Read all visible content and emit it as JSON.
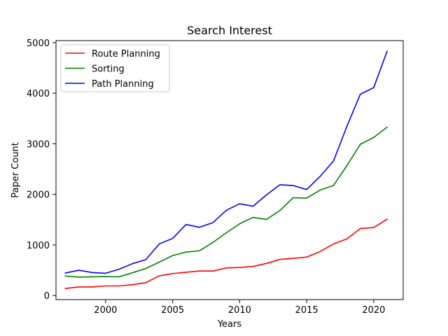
{
  "chart_data": {
    "type": "line",
    "title": "Search Interest",
    "xlabel": "Years",
    "ylabel": "Paper Count",
    "xlim": [
      1996.3,
      2022.2
    ],
    "ylim": [
      -80,
      5040
    ],
    "xticks": [
      2000,
      2005,
      2010,
      2015,
      2020
    ],
    "yticks": [
      0,
      1000,
      2000,
      3000,
      4000,
      5000
    ],
    "grid": false,
    "legend_position": "top-left",
    "x": [
      1997,
      1998,
      1999,
      2000,
      2001,
      2002,
      2003,
      2004,
      2005,
      2006,
      2007,
      2008,
      2009,
      2010,
      2011,
      2012,
      2013,
      2014,
      2015,
      2016,
      2017,
      2018,
      2019,
      2020,
      2021
    ],
    "series": [
      {
        "name": "Route Planning",
        "color": "#ff0000",
        "values": [
          140,
          170,
          170,
          190,
          190,
          215,
          255,
          390,
          435,
          460,
          485,
          485,
          545,
          555,
          575,
          635,
          715,
          735,
          760,
          870,
          1020,
          1120,
          1325,
          1345,
          1510
        ]
      },
      {
        "name": "Sorting",
        "color": "#008000",
        "values": [
          385,
          365,
          370,
          375,
          370,
          450,
          535,
          660,
          790,
          860,
          885,
          1050,
          1240,
          1420,
          1545,
          1505,
          1680,
          1935,
          1925,
          2085,
          2175,
          2570,
          2990,
          3125,
          3330
        ]
      },
      {
        "name": "Path Planning",
        "color": "#0000ff",
        "values": [
          445,
          500,
          455,
          440,
          520,
          630,
          710,
          1020,
          1130,
          1405,
          1350,
          1440,
          1685,
          1815,
          1765,
          1990,
          2190,
          2175,
          2095,
          2355,
          2660,
          3345,
          3980,
          4110,
          4830
        ]
      }
    ]
  }
}
